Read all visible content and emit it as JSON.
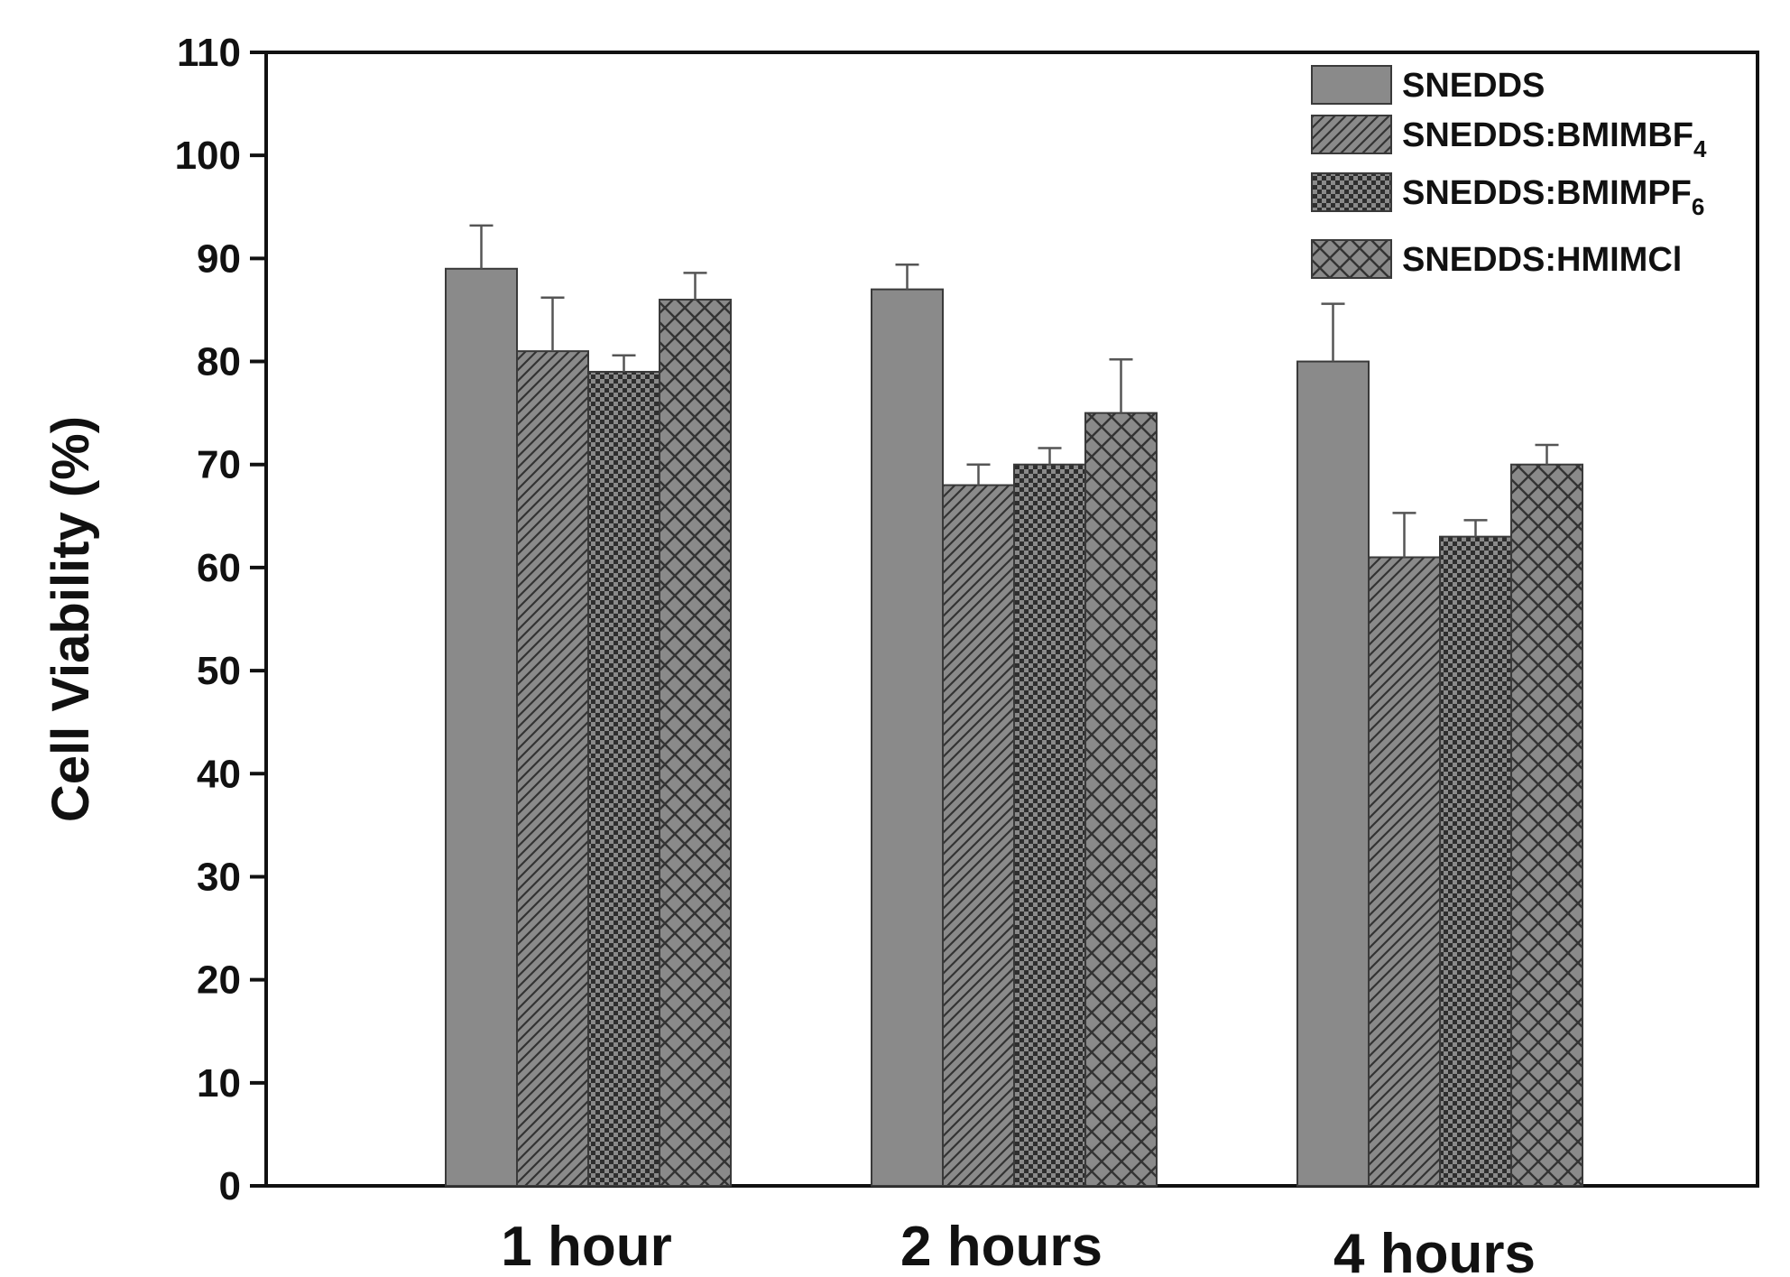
{
  "chart_data": {
    "type": "bar",
    "title": "",
    "xlabel": "",
    "ylabel": "Cell Viability (%)",
    "ylim": [
      0,
      110
    ],
    "yticks": [
      0,
      10,
      20,
      30,
      40,
      50,
      60,
      70,
      80,
      90,
      100,
      110
    ],
    "grid": false,
    "legend_position": "top-right",
    "categories": [
      "1 hour",
      "2 hours",
      "4 hours"
    ],
    "series": [
      {
        "name": "SNEDDS",
        "legend_main": "SNEDDS",
        "legend_sub": "",
        "pattern": "solid",
        "values": [
          89,
          87,
          80
        ],
        "errors": [
          4.2,
          2.4,
          5.6
        ]
      },
      {
        "name": "SNEDDS:BMIMBF4",
        "legend_main": "SNEDDS:BMIMBF",
        "legend_sub": "4",
        "pattern": "diagonal-hatch",
        "values": [
          81,
          68,
          61
        ],
        "errors": [
          5.2,
          2.0,
          4.3
        ]
      },
      {
        "name": "SNEDDS:BMIMPF6",
        "legend_main": "SNEDDS:BMIMPF",
        "legend_sub": "6",
        "pattern": "checker",
        "values": [
          79,
          70,
          63
        ],
        "errors": [
          1.6,
          1.6,
          1.6
        ]
      },
      {
        "name": "SNEDDS:HMIMCl",
        "legend_main": "SNEDDS:HMIMCl",
        "legend_sub": "",
        "pattern": "crosshatch",
        "values": [
          86,
          75,
          70
        ],
        "errors": [
          2.6,
          5.2,
          1.9
        ]
      }
    ],
    "colors": {
      "bar_fill": "#8a8a8a",
      "pattern_line": "#333333",
      "axis": "#111111"
    }
  }
}
